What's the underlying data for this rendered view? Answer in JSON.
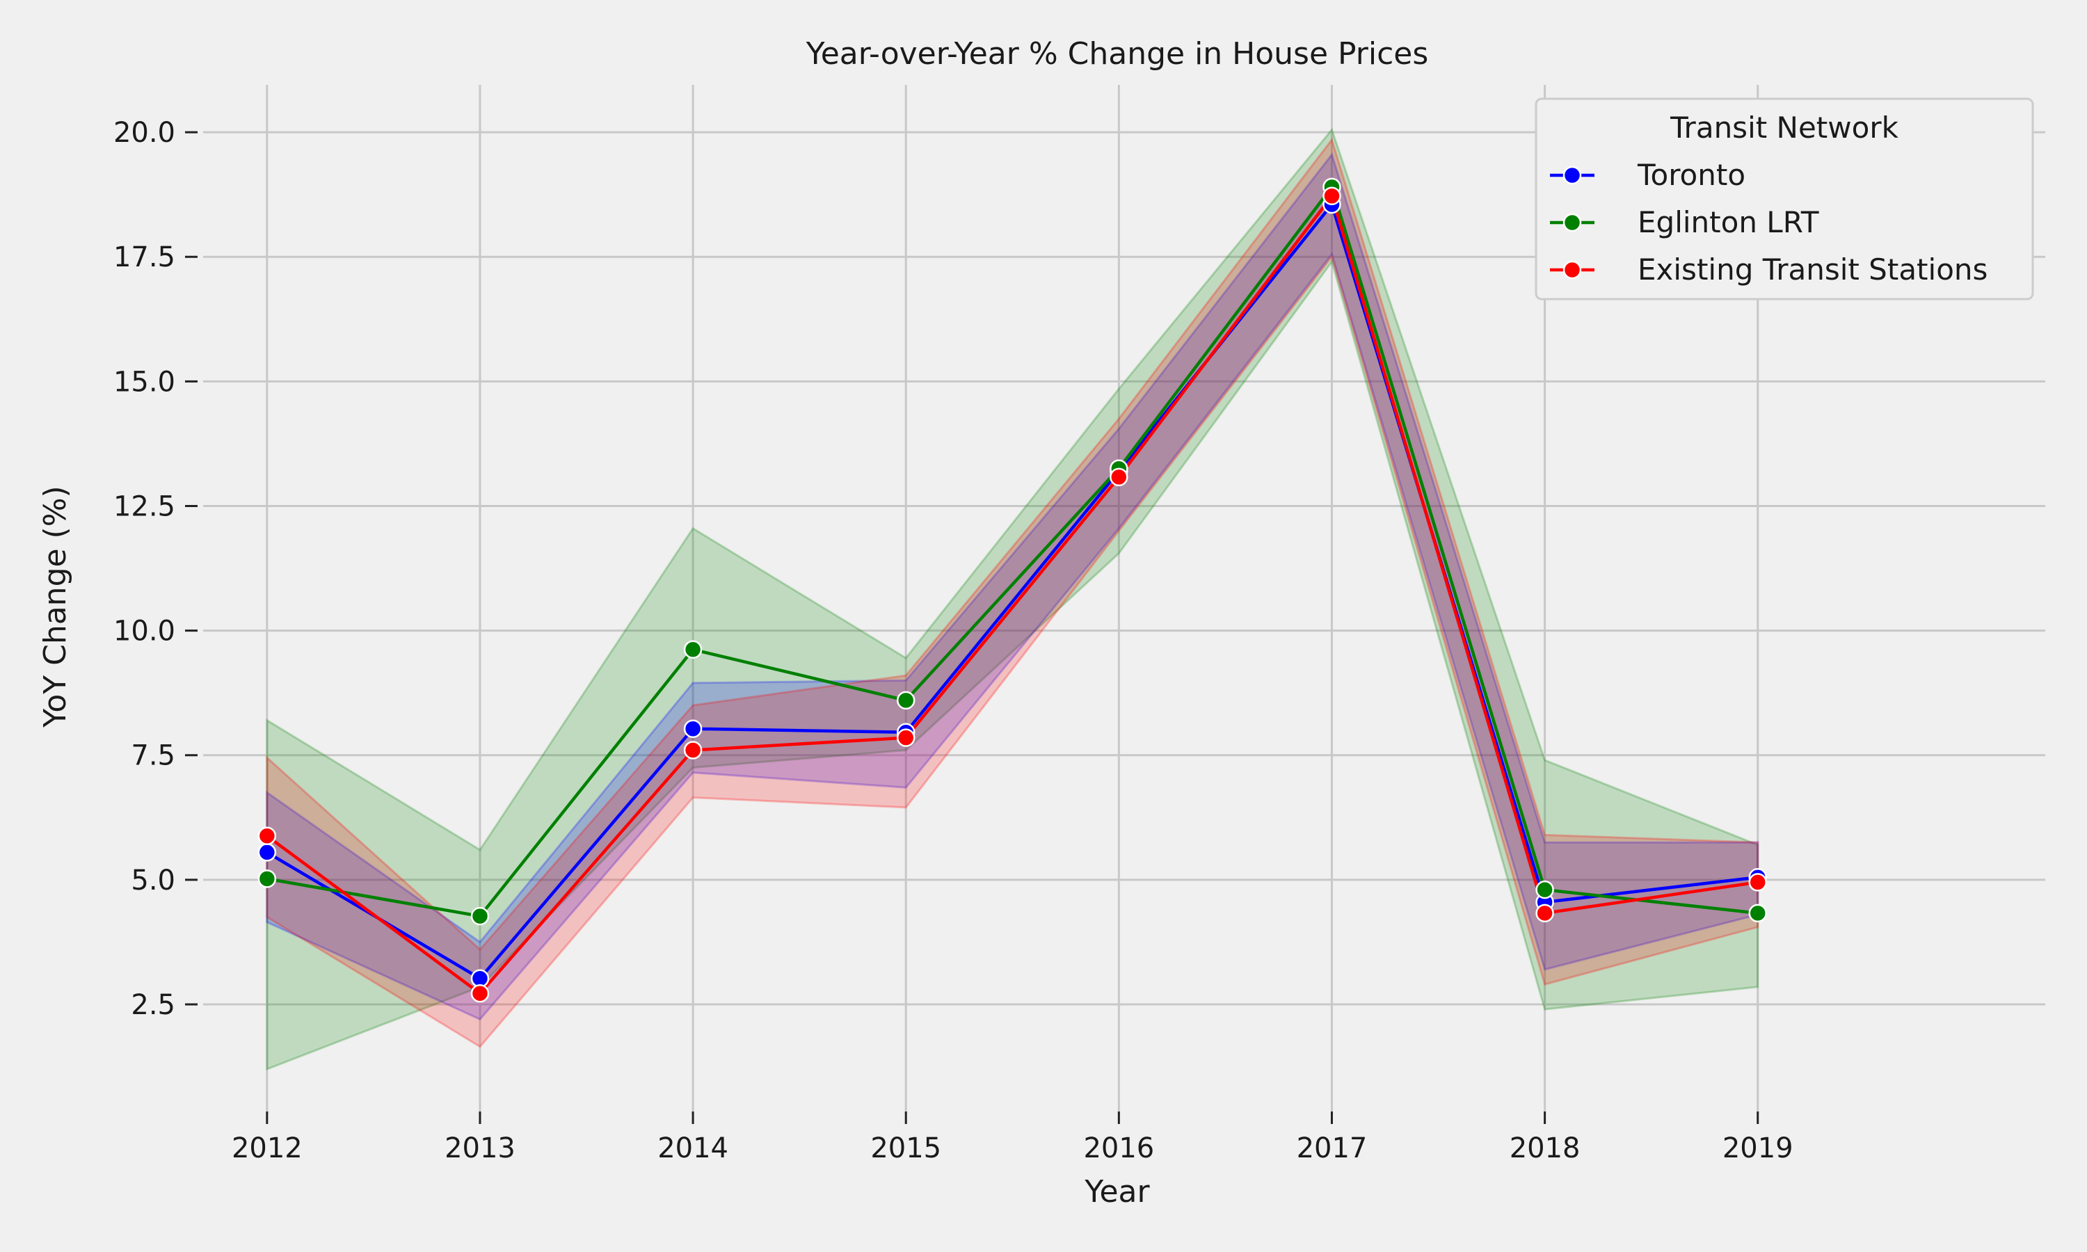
{
  "chart_data": {
    "type": "line",
    "title": "Year-over-Year % Change in House Prices",
    "xlabel": "Year",
    "ylabel": "YoY Change (%)",
    "x": [
      2012,
      2013,
      2014,
      2015,
      2016,
      2017,
      2018,
      2019
    ],
    "x_tick_labels": [
      "2012",
      "2013",
      "2014",
      "2015",
      "2016",
      "2017",
      "2018",
      "2019"
    ],
    "y_ticks": [
      2.5,
      5.0,
      7.5,
      10.0,
      12.5,
      15.0,
      17.5,
      20.0
    ],
    "y_tick_labels": [
      "2.5",
      "5.0",
      "7.5",
      "10.0",
      "12.5",
      "15.0",
      "17.5",
      "20.0"
    ],
    "ylim": [
      0.35,
      20.95
    ],
    "xlim": [
      2011.7,
      2020.35
    ],
    "grid": true,
    "legend": {
      "title": "Transit Network",
      "position": "top-right"
    },
    "series": [
      {
        "name": "Toronto",
        "color": "#0000ff",
        "values": [
          5.55,
          3.02,
          8.03,
          7.96,
          13.2,
          18.55,
          4.55,
          5.05
        ],
        "ci_low": [
          4.15,
          2.2,
          7.15,
          6.85,
          12.05,
          17.55,
          3.2,
          4.3
        ],
        "ci_high": [
          6.75,
          3.75,
          8.95,
          9.0,
          14.05,
          19.55,
          5.75,
          5.75
        ]
      },
      {
        "name": "Eglinton LRT",
        "color": "#008000",
        "values": [
          5.02,
          4.27,
          9.62,
          8.6,
          13.25,
          18.9,
          4.8,
          4.33
        ],
        "ci_low": [
          1.2,
          2.85,
          7.25,
          7.6,
          11.55,
          17.4,
          2.4,
          2.85
        ],
        "ci_high": [
          8.2,
          5.6,
          12.05,
          9.45,
          14.85,
          20.05,
          7.4,
          5.7
        ]
      },
      {
        "name": "Existing Transit Stations",
        "color": "#ff0000",
        "values": [
          5.88,
          2.72,
          7.6,
          7.85,
          13.08,
          18.72,
          4.33,
          4.95
        ],
        "ci_low": [
          4.25,
          1.65,
          6.65,
          6.45,
          12.0,
          17.5,
          2.9,
          4.05
        ],
        "ci_high": [
          7.45,
          3.6,
          8.5,
          9.1,
          14.25,
          19.85,
          5.9,
          5.75
        ]
      }
    ]
  }
}
